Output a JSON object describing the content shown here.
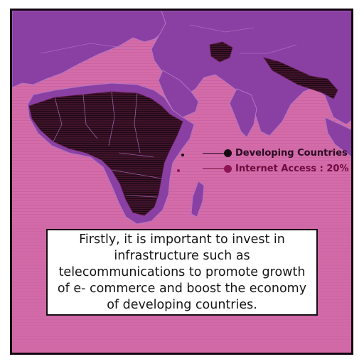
{
  "legend": {
    "developing_label": "Developing Countries",
    "internet_label": "Internet Access : 20%",
    "developing_color": "#160a12",
    "internet_color": "#8d1452"
  },
  "colors": {
    "background": "#d36ca9",
    "land": "#8a3fa3",
    "highlight": "#1a0915",
    "stripe": "#7a2149",
    "border_line": "#b076c4"
  },
  "caption": {
    "text": "Firstly, it is important to invest in infrastructure such as telecommunications to promote growth of e- commerce and boost the economy of developing countries."
  }
}
